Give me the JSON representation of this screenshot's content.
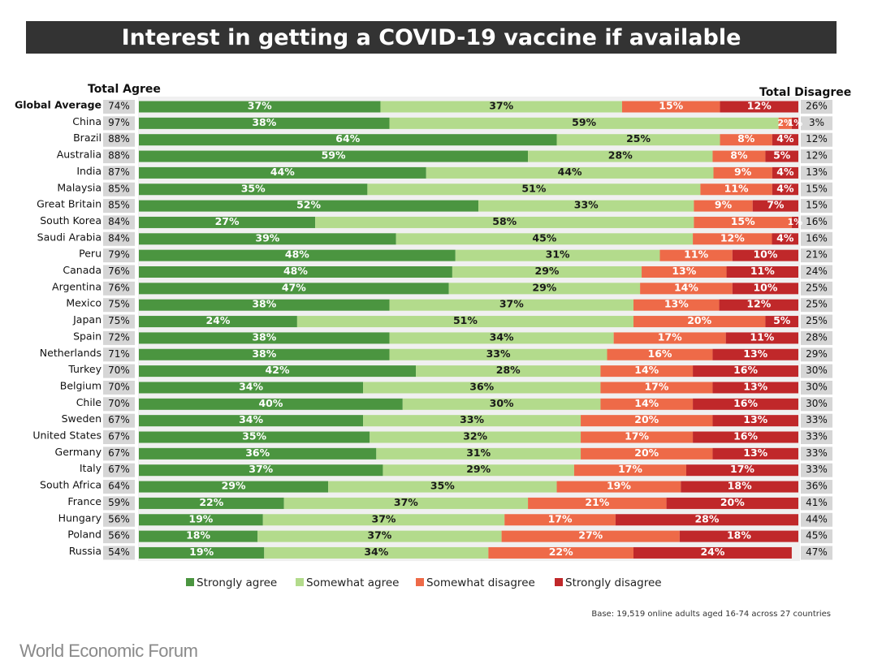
{
  "title": "Interest in getting a COVID-19 vaccine if available",
  "base_note": "Base: 19,519 online adults aged 16-74 across 27 countries",
  "source": "World Economic Forum",
  "colors": {
    "strongly_agree": "#4b9540",
    "somewhat_agree": "#b3db8c",
    "somewhat_disagree": "#ee6a48",
    "strongly_disagree": "#c0282a",
    "total_cell": "#d6d6d6"
  },
  "chart_data": {
    "type": "bar",
    "orientation": "horizontal",
    "stacked": true,
    "title": "Interest in getting a COVID-19 vaccine if available",
    "left_column_header": "Total Agree",
    "right_column_header": "Total Disagree",
    "xlim": [
      0,
      100
    ],
    "legend_position": "bottom",
    "series": [
      {
        "key": "strongly_agree",
        "name": "Strongly agree"
      },
      {
        "key": "somewhat_agree",
        "name": "Somewhat agree"
      },
      {
        "key": "somewhat_disagree",
        "name": "Somewhat disagree"
      },
      {
        "key": "strongly_disagree",
        "name": "Strongly disagree"
      }
    ],
    "rows": [
      {
        "country": "Global Average",
        "total_agree": "74%",
        "values": [
          37,
          37,
          15,
          12
        ],
        "labels": [
          "37%",
          "37%",
          "15%",
          "12%"
        ],
        "total_disagree": "26%"
      },
      {
        "country": "China",
        "total_agree": "97%",
        "values": [
          38,
          59,
          2,
          1
        ],
        "labels": [
          "38%",
          "59%",
          "2%",
          "1%"
        ],
        "total_disagree": "3%"
      },
      {
        "country": "Brazil",
        "total_agree": "88%",
        "values": [
          64,
          25,
          8,
          4
        ],
        "labels": [
          "64%",
          "25%",
          "8%",
          "4%"
        ],
        "total_disagree": "12%"
      },
      {
        "country": "Australia",
        "total_agree": "88%",
        "values": [
          59,
          28,
          8,
          5
        ],
        "labels": [
          "59%",
          "28%",
          "8%",
          "5%"
        ],
        "total_disagree": "12%"
      },
      {
        "country": "India",
        "total_agree": "87%",
        "values": [
          44,
          44,
          9,
          4
        ],
        "labels": [
          "44%",
          "44%",
          "9%",
          "4%"
        ],
        "total_disagree": "13%"
      },
      {
        "country": "Malaysia",
        "total_agree": "85%",
        "values": [
          35,
          51,
          11,
          4
        ],
        "labels": [
          "35%",
          "51%",
          "11%",
          "4%"
        ],
        "total_disagree": "15%"
      },
      {
        "country": "Great Britain",
        "total_agree": "85%",
        "values": [
          52,
          33,
          9,
          7
        ],
        "labels": [
          "52%",
          "33%",
          "9%",
          "7%"
        ],
        "total_disagree": "15%"
      },
      {
        "country": "South Korea",
        "total_agree": "84%",
        "values": [
          27,
          58,
          15,
          1
        ],
        "labels": [
          "27%",
          "58%",
          "15%",
          "1%"
        ],
        "total_disagree": "16%"
      },
      {
        "country": "Saudi Arabia",
        "total_agree": "84%",
        "values": [
          39,
          45,
          12,
          4
        ],
        "labels": [
          "39%",
          "45%",
          "12%",
          "4%"
        ],
        "total_disagree": "16%"
      },
      {
        "country": "Peru",
        "total_agree": "79%",
        "values": [
          48,
          31,
          11,
          10
        ],
        "labels": [
          "48%",
          "31%",
          "11%",
          "10%"
        ],
        "total_disagree": "21%"
      },
      {
        "country": "Canada",
        "total_agree": "76%",
        "values": [
          48,
          29,
          13,
          11
        ],
        "labels": [
          "48%",
          "29%",
          "13%",
          "11%"
        ],
        "total_disagree": "24%"
      },
      {
        "country": "Argentina",
        "total_agree": "76%",
        "values": [
          47,
          29,
          14,
          10
        ],
        "labels": [
          "47%",
          "29%",
          "14%",
          "10%"
        ],
        "total_disagree": "25%"
      },
      {
        "country": "Mexico",
        "total_agree": "75%",
        "values": [
          38,
          37,
          13,
          12
        ],
        "labels": [
          "38%",
          "37%",
          "13%",
          "12%"
        ],
        "total_disagree": "25%"
      },
      {
        "country": "Japan",
        "total_agree": "75%",
        "values": [
          24,
          51,
          20,
          5
        ],
        "labels": [
          "24%",
          "51%",
          "20%",
          "5%"
        ],
        "total_disagree": "25%"
      },
      {
        "country": "Spain",
        "total_agree": "72%",
        "values": [
          38,
          34,
          17,
          11
        ],
        "labels": [
          "38%",
          "34%",
          "17%",
          "11%"
        ],
        "total_disagree": "28%"
      },
      {
        "country": "Netherlands",
        "total_agree": "71%",
        "values": [
          38,
          33,
          16,
          13
        ],
        "labels": [
          "38%",
          "33%",
          "16%",
          "13%"
        ],
        "total_disagree": "29%"
      },
      {
        "country": "Turkey",
        "total_agree": "70%",
        "values": [
          42,
          28,
          14,
          16
        ],
        "labels": [
          "42%",
          "28%",
          "14%",
          "16%"
        ],
        "total_disagree": "30%"
      },
      {
        "country": "Belgium",
        "total_agree": "70%",
        "values": [
          34,
          36,
          17,
          13
        ],
        "labels": [
          "34%",
          "36%",
          "17%",
          "13%"
        ],
        "total_disagree": "30%"
      },
      {
        "country": "Chile",
        "total_agree": "70%",
        "values": [
          40,
          30,
          14,
          16
        ],
        "labels": [
          "40%",
          "30%",
          "14%",
          "16%"
        ],
        "total_disagree": "30%"
      },
      {
        "country": "Sweden",
        "total_agree": "67%",
        "values": [
          34,
          33,
          20,
          13
        ],
        "labels": [
          "34%",
          "33%",
          "20%",
          "13%"
        ],
        "total_disagree": "33%"
      },
      {
        "country": "United States",
        "total_agree": "67%",
        "values": [
          35,
          32,
          17,
          16
        ],
        "labels": [
          "35%",
          "32%",
          "17%",
          "16%"
        ],
        "total_disagree": "33%"
      },
      {
        "country": "Germany",
        "total_agree": "67%",
        "values": [
          36,
          31,
          20,
          13
        ],
        "labels": [
          "36%",
          "31%",
          "20%",
          "13%"
        ],
        "total_disagree": "33%"
      },
      {
        "country": "Italy",
        "total_agree": "67%",
        "values": [
          37,
          29,
          17,
          17
        ],
        "labels": [
          "37%",
          "29%",
          "17%",
          "17%"
        ],
        "total_disagree": "33%"
      },
      {
        "country": "South Africa",
        "total_agree": "64%",
        "values": [
          29,
          35,
          19,
          18
        ],
        "labels": [
          "29%",
          "35%",
          "19%",
          "18%"
        ],
        "total_disagree": "36%"
      },
      {
        "country": "France",
        "total_agree": "59%",
        "values": [
          22,
          37,
          21,
          20
        ],
        "labels": [
          "22%",
          "37%",
          "21%",
          "20%"
        ],
        "total_disagree": "41%"
      },
      {
        "country": "Hungary",
        "total_agree": "56%",
        "values": [
          19,
          37,
          17,
          28
        ],
        "labels": [
          "19%",
          "37%",
          "17%",
          "28%"
        ],
        "total_disagree": "44%"
      },
      {
        "country": "Poland",
        "total_agree": "56%",
        "values": [
          18,
          37,
          27,
          18
        ],
        "labels": [
          "18%",
          "37%",
          "27%",
          "18%"
        ],
        "total_disagree": "45%"
      },
      {
        "country": "Russia",
        "total_agree": "54%",
        "values": [
          19,
          34,
          22,
          24
        ],
        "labels": [
          "19%",
          "34%",
          "22%",
          "24%"
        ],
        "total_disagree": "47%"
      }
    ]
  }
}
